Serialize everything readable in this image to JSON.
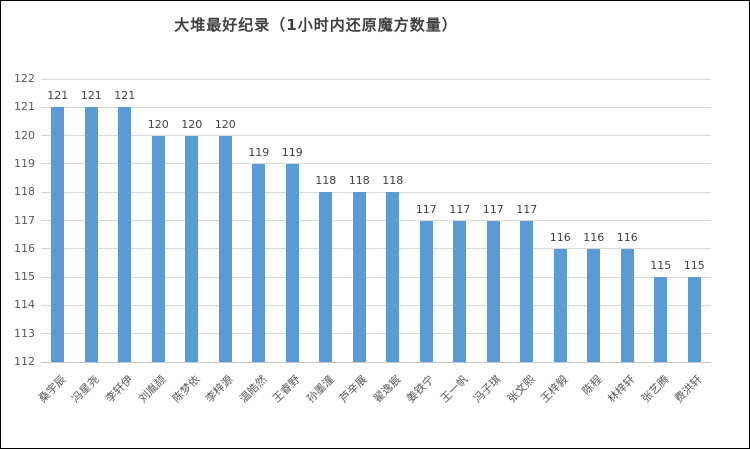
{
  "window": {
    "background": "#FFFFFF",
    "border_color": "#000000"
  },
  "chart_data": {
    "type": "bar",
    "title": "大堆最好纪录（1小时内还原魔方数量）",
    "categories": [
      "桑宇辰",
      "冯星尧",
      "李轩伊",
      "刘胤颉",
      "陈梦依",
      "李梓源",
      "温皓然",
      "王睿野",
      "孙墨潼",
      "芦辛展",
      "翟逸宸",
      "姜铁宁",
      "王一帆",
      "冯子琪",
      "张文熙",
      "王梓毅",
      "陈程",
      "林梓轩",
      "张艺腾",
      "费洪轩"
    ],
    "values": [
      121,
      121,
      121,
      120,
      120,
      120,
      119,
      119,
      118,
      118,
      118,
      117,
      117,
      117,
      117,
      116,
      116,
      116,
      115,
      115
    ],
    "xlabel": "",
    "ylabel": "",
    "ylim": [
      112,
      122
    ],
    "yticks": [
      112,
      113,
      114,
      115,
      116,
      117,
      118,
      119,
      120,
      121,
      122
    ],
    "x_tick_rotation": 45,
    "grid": true,
    "legend": "none",
    "data_labels": true,
    "colors": {
      "bar": "#5B9BD5",
      "gridline": "#D9D9D9",
      "axis_line": "#C6C6C6",
      "tick_label": "#595959",
      "data_label": "#404040",
      "title": "#404040"
    }
  }
}
